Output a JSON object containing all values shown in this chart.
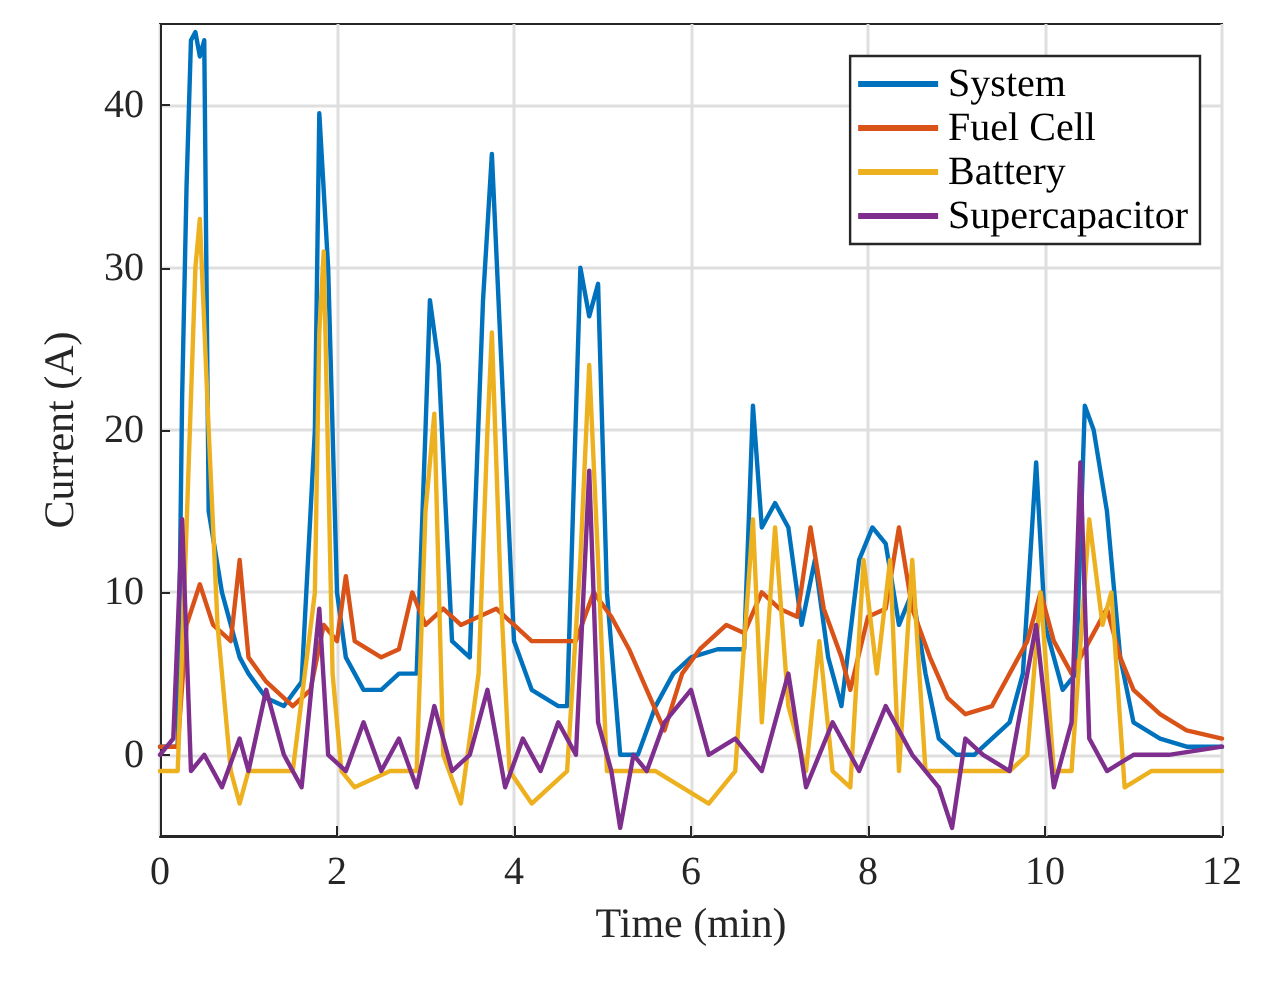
{
  "chart_data": {
    "type": "line",
    "xlabel": "Time (min)",
    "ylabel": "Current (A)",
    "xlim": [
      0,
      12
    ],
    "xticks": [
      0,
      2,
      4,
      6,
      8,
      10,
      12
    ],
    "ylim": [
      -5,
      45
    ],
    "yticks": [
      0,
      10,
      20,
      30,
      40
    ],
    "grid": true,
    "legend": "top right",
    "marker": "none",
    "line_style": "solid",
    "series": [
      {
        "name": "System",
        "color": "#0072bd",
        "x": [
          0,
          0.2,
          0.25,
          0.3,
          0.35,
          0.4,
          0.45,
          0.5,
          0.55,
          0.7,
          0.9,
          1.0,
          1.2,
          1.4,
          1.6,
          1.75,
          1.8,
          1.9,
          2.0,
          2.1,
          2.3,
          2.5,
          2.7,
          2.9,
          3.0,
          3.05,
          3.15,
          3.3,
          3.5,
          3.65,
          3.75,
          3.85,
          4.0,
          4.2,
          4.5,
          4.6,
          4.75,
          4.85,
          4.95,
          5.05,
          5.2,
          5.4,
          5.6,
          5.8,
          6.0,
          6.3,
          6.6,
          6.7,
          6.8,
          6.95,
          7.1,
          7.25,
          7.4,
          7.55,
          7.7,
          7.9,
          8.05,
          8.2,
          8.35,
          8.5,
          8.65,
          8.8,
          9.0,
          9.2,
          9.4,
          9.6,
          9.75,
          9.9,
          10.0,
          10.2,
          10.35,
          10.45,
          10.55,
          10.7,
          10.85,
          11.0,
          11.3,
          11.6,
          12
        ],
        "values": [
          0.5,
          0.5,
          22,
          35,
          44,
          44.5,
          43,
          44,
          15,
          10,
          6,
          5,
          3.5,
          3,
          4.5,
          20,
          39.5,
          30,
          10,
          6,
          4,
          4,
          5,
          5,
          20,
          28,
          24,
          7,
          6,
          28,
          37,
          25,
          7,
          4,
          3,
          3,
          30,
          27,
          29,
          10,
          0,
          0,
          3,
          5,
          6,
          6.5,
          6.5,
          21.5,
          14,
          15.5,
          14,
          8,
          12,
          6,
          3,
          12,
          14,
          13,
          8,
          10,
          5,
          1,
          0,
          0,
          1,
          2,
          5,
          18,
          8,
          4,
          5,
          21.5,
          20,
          15,
          6,
          2,
          1,
          0.5,
          0.5
        ]
      },
      {
        "name": "Fuel Cell",
        "color": "#d95319",
        "x": [
          0,
          0.2,
          0.3,
          0.45,
          0.6,
          0.8,
          0.9,
          1.0,
          1.2,
          1.5,
          1.7,
          1.85,
          2.0,
          2.1,
          2.2,
          2.5,
          2.7,
          2.85,
          3.0,
          3.2,
          3.4,
          3.6,
          3.8,
          4.0,
          4.2,
          4.5,
          4.7,
          4.9,
          5.1,
          5.3,
          5.5,
          5.7,
          5.9,
          6.1,
          6.4,
          6.6,
          6.8,
          7.0,
          7.2,
          7.35,
          7.5,
          7.7,
          7.8,
          8.0,
          8.2,
          8.35,
          8.5,
          8.7,
          8.9,
          9.1,
          9.4,
          9.6,
          9.8,
          9.95,
          10.1,
          10.3,
          10.5,
          10.7,
          10.85,
          11.0,
          11.3,
          11.6,
          12
        ],
        "values": [
          0.5,
          0.5,
          8,
          10.5,
          8,
          7,
          12,
          6,
          4.5,
          3,
          4,
          8,
          7,
          11,
          7,
          6,
          6.5,
          10,
          8,
          9,
          8,
          8.5,
          9,
          8,
          7,
          7,
          7,
          10,
          8.5,
          6.5,
          4,
          1.5,
          5,
          6.5,
          8,
          7.5,
          10,
          9,
          8.5,
          14,
          9,
          6,
          4,
          8.5,
          9,
          14,
          9,
          6,
          3.5,
          2.5,
          3,
          5,
          7,
          10,
          7,
          5,
          7,
          9,
          6,
          4,
          2.5,
          1.5,
          1
        ]
      },
      {
        "name": "Battery",
        "color": "#edb120",
        "x": [
          0,
          0.2,
          0.3,
          0.4,
          0.45,
          0.55,
          0.65,
          0.8,
          0.9,
          1.0,
          1.5,
          1.75,
          1.8,
          1.85,
          1.95,
          2.05,
          2.2,
          2.6,
          2.9,
          3.0,
          3.1,
          3.2,
          3.4,
          3.6,
          3.7,
          3.75,
          3.85,
          3.95,
          4.2,
          4.6,
          4.75,
          4.85,
          4.95,
          5.05,
          5.3,
          5.6,
          5.9,
          6.2,
          6.5,
          6.7,
          6.8,
          6.95,
          7.1,
          7.3,
          7.45,
          7.6,
          7.8,
          7.95,
          8.1,
          8.25,
          8.35,
          8.5,
          8.65,
          8.9,
          9.2,
          9.6,
          9.8,
          9.95,
          10.1,
          10.3,
          10.5,
          10.65,
          10.75,
          10.9,
          11.2,
          12
        ],
        "values": [
          -1,
          -1,
          14,
          30,
          33,
          20,
          8,
          -1,
          -3,
          -1,
          -1,
          10,
          26,
          31,
          5,
          -1,
          -2,
          -1,
          -1,
          15,
          21,
          0,
          -3,
          5,
          20,
          26,
          10,
          -1,
          -3,
          -1,
          12,
          24,
          12,
          -1,
          -1,
          -1,
          -2,
          -3,
          -1,
          14.5,
          2,
          14,
          3,
          -1,
          7,
          -1,
          -2,
          12,
          5,
          12,
          -1,
          12,
          -1,
          -1,
          -1,
          -1,
          0,
          10,
          -1,
          -1,
          14.5,
          8,
          10,
          -2,
          -1,
          -1
        ]
      },
      {
        "name": "Supercapacitor",
        "color": "#7e2f8e",
        "x": [
          0,
          0.15,
          0.25,
          0.35,
          0.5,
          0.7,
          0.9,
          1.0,
          1.2,
          1.4,
          1.6,
          1.8,
          1.9,
          2.1,
          2.3,
          2.5,
          2.7,
          2.9,
          3.1,
          3.3,
          3.5,
          3.7,
          3.9,
          4.1,
          4.3,
          4.5,
          4.7,
          4.85,
          4.95,
          5.1,
          5.2,
          5.35,
          5.5,
          5.7,
          6.0,
          6.2,
          6.5,
          6.8,
          7.1,
          7.3,
          7.6,
          7.9,
          8.2,
          8.5,
          8.8,
          8.95,
          9.1,
          9.3,
          9.6,
          9.9,
          10.1,
          10.3,
          10.4,
          10.5,
          10.7,
          11.0,
          11.4,
          12
        ],
        "values": [
          0,
          1,
          14.5,
          -1,
          0,
          -2,
          1,
          -1,
          4,
          0,
          -2,
          9,
          0,
          -1,
          2,
          -1,
          1,
          -2,
          3,
          -1,
          0,
          4,
          -2,
          1,
          -1,
          2,
          0,
          17.5,
          2,
          -1,
          -4.5,
          0,
          -1,
          2,
          4,
          0,
          1,
          -1,
          5,
          -2,
          2,
          -1,
          3,
          0,
          -2,
          -4.5,
          1,
          0,
          -1,
          8,
          -2,
          2,
          18,
          1,
          -1,
          0,
          0,
          0.5
        ]
      }
    ]
  }
}
